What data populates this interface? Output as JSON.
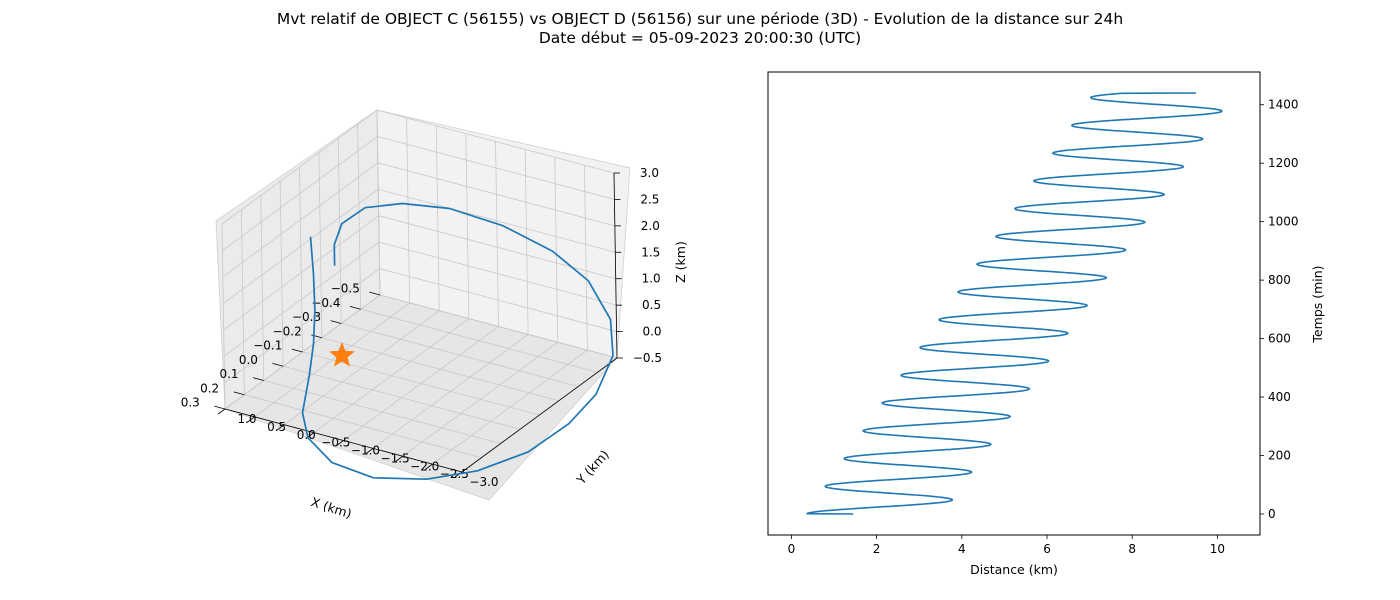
{
  "title": {
    "line1": "Mvt relatif de OBJECT C (56155) vs OBJECT D (56156) sur une période (3D) - Evolution de la distance sur 24h",
    "line2": "Date début = 05-09-2023 20:00:30 (UTC)"
  },
  "chart_data": [
    {
      "type": "line3d",
      "title": "",
      "xlabel": "X (km)",
      "ylabel": "Y (km)",
      "zlabel": "Z (km)",
      "xlim": [
        -0.5,
        0.3
      ],
      "ylim": [
        -3.0,
        1.0
      ],
      "zlim": [
        -0.5,
        3.0
      ],
      "xticks": [
        "−0.5",
        "−0.4",
        "−0.3",
        "−0.2",
        "−0.1",
        "0.0",
        "0.1",
        "0.2",
        "0.3"
      ],
      "yticks": [
        "−3.0",
        "−2.5",
        "−2.0",
        "−1.5",
        "−1.0",
        "−0.5",
        "0.0",
        "0.5",
        "1.0"
      ],
      "zticks": [
        "−0.5",
        "0.0",
        "0.5",
        "1.0",
        "1.5",
        "2.0",
        "2.5",
        "3.0"
      ],
      "grid": true,
      "series": [
        {
          "color": "#1f77b4",
          "points": [
            [
              0.0,
              0.5,
              2.1
            ],
            [
              0.0,
              0.46,
              1.4
            ],
            [
              0.02,
              0.38,
              0.8
            ],
            [
              0.06,
              0.28,
              0.3
            ],
            [
              0.12,
              0.16,
              -0.1
            ],
            [
              0.2,
              0.02,
              -0.55
            ],
            [
              0.24,
              -0.2,
              -0.85
            ],
            [
              0.24,
              -0.6,
              -1.2
            ],
            [
              0.18,
              -1.1,
              -1.5
            ],
            [
              0.06,
              -1.6,
              -1.7
            ],
            [
              -0.08,
              -2.0,
              -1.8
            ],
            [
              -0.22,
              -2.4,
              -1.7
            ],
            [
              -0.34,
              -2.7,
              -1.4
            ],
            [
              -0.42,
              -2.9,
              -1.0
            ],
            [
              -0.48,
              -3.0,
              -0.4
            ],
            [
              -0.5,
              -2.9,
              0.2
            ],
            [
              -0.48,
              -2.6,
              0.9
            ],
            [
              -0.42,
              -2.2,
              1.5
            ],
            [
              -0.32,
              -1.7,
              2.1
            ],
            [
              -0.2,
              -1.2,
              2.6
            ],
            [
              -0.08,
              -0.8,
              2.9
            ],
            [
              0.02,
              -0.5,
              3.0
            ],
            [
              0.08,
              -0.3,
              2.8
            ],
            [
              0.09,
              -0.2,
              2.4
            ],
            [
              0.09,
              -0.2,
              2.0
            ]
          ]
        }
      ],
      "markers": [
        {
          "shape": "star",
          "color": "#ff7f0e",
          "point": [
            0.0,
            0.0,
            0.0
          ]
        }
      ]
    },
    {
      "type": "line",
      "title": "",
      "xlabel": "Distance (km)",
      "ylabel": "Temps (min)",
      "xlim": [
        -0.55,
        11.0
      ],
      "ylim": [
        -72,
        1512
      ],
      "xticks": [
        0,
        2,
        4,
        6,
        8,
        10
      ],
      "yticks": [
        0,
        200,
        400,
        600,
        800,
        1000,
        1200,
        1400
      ],
      "yaxis_position": "right",
      "grid": false,
      "series": [
        {
          "color": "#1f77b4",
          "period_min": 95,
          "t_range": [
            0,
            1440
          ],
          "center_start": 1.95,
          "center_end": 8.75,
          "amplitude_start": 1.6,
          "amplitude_end": 1.65,
          "x_start": 1.45,
          "x_end": 9.5
        }
      ]
    }
  ]
}
